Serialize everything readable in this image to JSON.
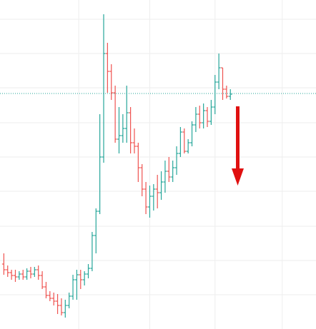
{
  "chart_data": {
    "type": "ohlc",
    "x": [
      0,
      1,
      2,
      3,
      4,
      5,
      6,
      7,
      8,
      9,
      10,
      11,
      12,
      13,
      14,
      15,
      16,
      17,
      18,
      19,
      20,
      21,
      22,
      23,
      24,
      25,
      26,
      27,
      28,
      29,
      30,
      31,
      32,
      33,
      34,
      35,
      36,
      37,
      38,
      39,
      40,
      41,
      42,
      43,
      44,
      45,
      46,
      47,
      48,
      49,
      50,
      51,
      52,
      53,
      54,
      55,
      56,
      57,
      58,
      59
    ],
    "open": [
      91,
      83,
      79,
      75,
      73,
      77,
      73,
      81,
      77,
      83,
      75,
      59,
      47,
      43,
      39,
      33,
      23,
      33,
      46,
      69,
      76,
      69,
      77,
      85,
      131,
      165,
      241,
      386,
      361,
      331,
      266,
      271,
      281,
      303,
      261,
      256,
      226,
      196,
      171,
      186,
      196,
      191,
      206,
      221,
      213,
      226,
      246,
      276,
      249,
      261,
      286,
      301,
      289,
      306,
      291,
      311,
      346,
      366,
      336,
      326
    ],
    "high": [
      106,
      89,
      83,
      83,
      81,
      83,
      85,
      87,
      87,
      89,
      81,
      66,
      53,
      51,
      49,
      43,
      41,
      51,
      76,
      83,
      83,
      81,
      91,
      136,
      169,
      301,
      441,
      401,
      371,
      341,
      311,
      301,
      341,
      311,
      281,
      261,
      231,
      206,
      201,
      203,
      216,
      221,
      236,
      241,
      236,
      256,
      283,
      281,
      266,
      291,
      311,
      313,
      316,
      311,
      321,
      356,
      386,
      366,
      341,
      336
    ],
    "low": [
      76,
      73,
      69,
      66,
      69,
      69,
      69,
      71,
      73,
      69,
      56,
      43,
      39,
      33,
      21,
      19,
      16,
      29,
      41,
      41,
      56,
      61,
      71,
      81,
      106,
      161,
      233,
      331,
      321,
      261,
      246,
      261,
      261,
      246,
      246,
      206,
      186,
      161,
      156,
      166,
      169,
      181,
      191,
      206,
      206,
      216,
      241,
      246,
      246,
      256,
      276,
      281,
      281,
      283,
      286,
      301,
      336,
      321,
      323,
      321
    ],
    "close": [
      83,
      79,
      75,
      73,
      77,
      73,
      81,
      77,
      83,
      75,
      59,
      47,
      43,
      39,
      33,
      23,
      33,
      46,
      69,
      76,
      69,
      77,
      85,
      131,
      165,
      241,
      386,
      361,
      331,
      266,
      271,
      281,
      303,
      261,
      256,
      226,
      196,
      171,
      186,
      196,
      191,
      206,
      221,
      213,
      226,
      246,
      276,
      249,
      261,
      286,
      301,
      289,
      306,
      291,
      311,
      346,
      366,
      336,
      326,
      329
    ],
    "up_color": "#26a69a",
    "down_color": "#ef5350",
    "price_line": 330,
    "price_line_color": "#26a69a",
    "xlim": [
      -1,
      81.3
    ],
    "xticks": [
      19.5,
      38,
      55,
      72.5
    ],
    "ylim": [
      0,
      461
    ],
    "yticks": [
      48,
      96,
      144,
      193,
      241,
      289,
      338,
      386,
      434
    ],
    "grid": true
  }
}
